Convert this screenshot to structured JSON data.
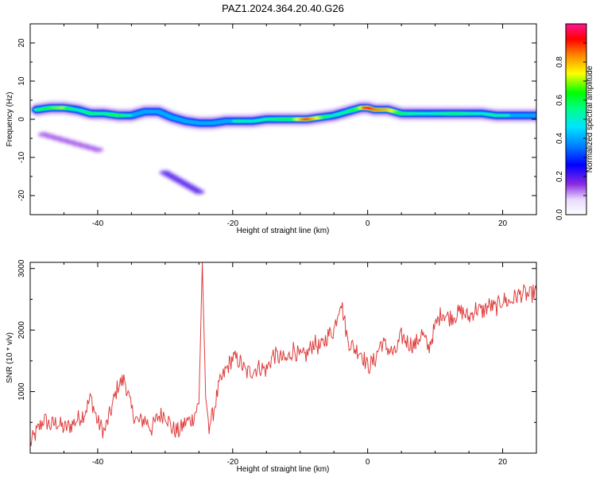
{
  "title": "PAZ1.2024.364.20.40.G26",
  "colors": {
    "snr_line": "#e03c3c",
    "frame": "#000000"
  },
  "chart_data": [
    {
      "type": "heatmap",
      "xlabel": "Height of straight line (km)",
      "ylabel": "Frequency (Hz)",
      "xlim": [
        -50,
        25
      ],
      "ylim": [
        -25,
        25
      ],
      "x_ticks": [
        -40,
        -20,
        0,
        20
      ],
      "y_ticks": [
        20,
        10,
        0,
        -10,
        -20
      ],
      "colorbar": {
        "label": "Normalized spectral amplitude",
        "range": [
          0.0,
          1.0
        ],
        "ticks": [
          0.0,
          0.2,
          0.4,
          0.6,
          0.8
        ],
        "tick_labels": [
          "0.0",
          "0.2",
          "0.4",
          "0.6",
          "0.8"
        ],
        "colormap": "rainbow (white to purple to blue to cyan to green to yellow to red to magenta)"
      },
      "ridge": {
        "x": [
          -49,
          -47,
          -45,
          -43,
          -41,
          -39,
          -37,
          -35,
          -33,
          -31,
          -29,
          -27,
          -25,
          -23,
          -21,
          -19,
          -17,
          -15,
          -13,
          -11,
          -9,
          -7,
          -5,
          -3,
          -1,
          0,
          1,
          3,
          5,
          7,
          9,
          11,
          13,
          15,
          17,
          19,
          21,
          23,
          25
        ],
        "y": [
          2.5,
          3.0,
          3.0,
          2.5,
          1.5,
          1.5,
          1.0,
          1.0,
          2.0,
          2.0,
          0.5,
          -0.5,
          -1.0,
          -1.0,
          -0.5,
          -0.5,
          -0.5,
          0.0,
          0.0,
          0.0,
          0.0,
          0.5,
          1.0,
          2.0,
          3.0,
          3.0,
          2.5,
          2.5,
          1.5,
          1.5,
          1.5,
          1.5,
          1.5,
          1.5,
          1.5,
          1.0,
          1.0,
          1.0,
          1.0
        ],
        "amplitude": [
          0.55,
          0.65,
          0.7,
          0.5,
          0.6,
          0.55,
          0.65,
          0.5,
          0.45,
          0.4,
          0.35,
          0.3,
          0.35,
          0.4,
          0.45,
          0.55,
          0.5,
          0.55,
          0.6,
          0.65,
          0.9,
          0.7,
          0.5,
          0.55,
          0.7,
          0.95,
          0.85,
          0.8,
          0.6,
          0.55,
          0.5,
          0.55,
          0.6,
          0.55,
          0.5,
          0.55,
          0.5,
          0.45,
          0.4
        ]
      },
      "secondary_patches": [
        {
          "x": [
            -48,
            -40
          ],
          "y": [
            -4,
            -8
          ],
          "amplitude": 0.15
        },
        {
          "x": [
            -30,
            -25
          ],
          "y": [
            -14,
            -19
          ],
          "amplitude": 0.2
        }
      ]
    },
    {
      "type": "line",
      "xlabel": "Height of straight line (km)",
      "ylabel": "SNR (10 * v/v)",
      "xlim": [
        -50,
        25
      ],
      "ylim": [
        0,
        3100
      ],
      "x_ticks": [
        -40,
        -20,
        0,
        20
      ],
      "y_ticks": [
        1000,
        2000,
        3000
      ],
      "series": [
        {
          "x": [
            -50,
            -49,
            -48,
            -47,
            -46,
            -45,
            -44,
            -43,
            -42,
            -41,
            -40,
            -39,
            -38,
            -37,
            -36,
            -35,
            -34,
            -33,
            -32,
            -31,
            -30,
            -29,
            -28,
            -27,
            -26,
            -25,
            -24.5,
            -24,
            -23.5,
            -23,
            -22,
            -21,
            -20,
            -19,
            -18,
            -17,
            -16,
            -15,
            -14,
            -13,
            -12,
            -11,
            -10,
            -9,
            -8,
            -7,
            -6,
            -5,
            -4,
            -3.5,
            -3,
            -2,
            -1,
            0,
            1,
            2,
            3,
            4,
            5,
            6,
            7,
            8,
            9,
            10,
            11,
            12,
            13,
            14,
            15,
            16,
            17,
            18,
            19,
            20,
            21,
            22,
            23,
            24,
            25
          ],
          "values": [
            150,
            350,
            550,
            450,
            500,
            400,
            450,
            550,
            650,
            900,
            500,
            350,
            700,
            1100,
            1200,
            700,
            500,
            550,
            400,
            600,
            650,
            400,
            350,
            500,
            550,
            800,
            3100,
            900,
            450,
            600,
            1100,
            1350,
            1550,
            1500,
            1300,
            1350,
            1400,
            1350,
            1600,
            1550,
            1500,
            1700,
            1550,
            1600,
            1800,
            1700,
            1900,
            2000,
            2500,
            2200,
            1850,
            1700,
            1650,
            1400,
            1500,
            1800,
            1700,
            1600,
            1900,
            1800,
            1750,
            1950,
            1700,
            2050,
            2300,
            2200,
            2250,
            2300,
            2200,
            2350,
            2300,
            2400,
            2350,
            2500,
            2450,
            2550,
            2600,
            2550,
            2650
          ]
        }
      ]
    }
  ]
}
